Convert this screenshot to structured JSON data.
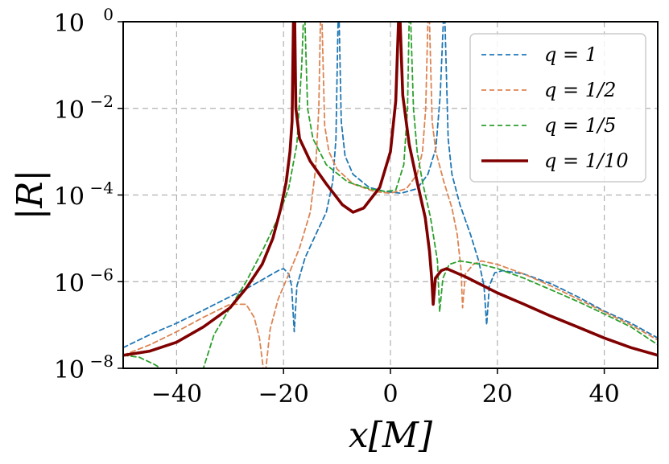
{
  "chart_data": {
    "type": "line",
    "title": "",
    "xlabel": "x[M]",
    "ylabel": "|R|",
    "xlim": [
      -50,
      50
    ],
    "ylim_log10": [
      -8,
      0
    ],
    "yscale": "log",
    "grid": true,
    "legend_position": "top-right",
    "x_ticks": [
      -40,
      -20,
      0,
      20,
      40
    ],
    "x_tick_labels": [
      "−40",
      "−20",
      "0",
      "20",
      "40"
    ],
    "y_ticks_log10": [
      -8,
      -6,
      -4,
      -2,
      0
    ],
    "y_tick_labels": [
      "10−8",
      "10−6",
      "10−4",
      "10−2",
      "100"
    ],
    "series": [
      {
        "name": "q = 1",
        "color": "#1f77b4",
        "style": "dashed",
        "points": [
          [
            -50,
            3e-08
          ],
          [
            -45,
            6e-08
          ],
          [
            -40,
            1.1e-07
          ],
          [
            -35,
            2.2e-07
          ],
          [
            -30,
            4.5e-07
          ],
          [
            -26,
            8e-07
          ],
          [
            -23,
            1.3e-06
          ],
          [
            -21,
            1.8e-06
          ],
          [
            -20,
            2e-06
          ],
          [
            -19,
            1.5e-06
          ],
          [
            -18.5,
            8e-07
          ],
          [
            -18,
            7e-08
          ],
          [
            -17.5,
            8e-07
          ],
          [
            -16,
            3.5e-06
          ],
          [
            -14,
            1.2e-05
          ],
          [
            -12,
            4e-05
          ],
          [
            -10.8,
            0.0002
          ],
          [
            -10.2,
            0.002
          ],
          [
            -9.8,
            1
          ],
          [
            -9.6,
            1
          ],
          [
            -9.2,
            0.005
          ],
          [
            -8.5,
            0.0008
          ],
          [
            -7,
            0.0003
          ],
          [
            -4,
            0.00015
          ],
          [
            -1,
            0.00012
          ],
          [
            2,
            0.00011
          ],
          [
            5,
            0.00014
          ],
          [
            7,
            0.0003
          ],
          [
            8.5,
            0.0012
          ],
          [
            9.3,
            0.02
          ],
          [
            9.9,
            1
          ],
          [
            10.2,
            1
          ],
          [
            10.8,
            0.002
          ],
          [
            11.5,
            0.0003
          ],
          [
            13,
            6e-05
          ],
          [
            15,
            1.2e-05
          ],
          [
            16.5,
            3e-06
          ],
          [
            17.5,
            8e-07
          ],
          [
            18,
            1e-07
          ],
          [
            18.5,
            8e-07
          ],
          [
            19.5,
            1.6e-06
          ],
          [
            21,
            1.8e-06
          ],
          [
            25,
            1.5e-06
          ],
          [
            30,
            9e-07
          ],
          [
            35,
            4.5e-07
          ],
          [
            40,
            2.1e-07
          ],
          [
            45,
            1.1e-07
          ],
          [
            50,
            5e-08
          ]
        ]
      },
      {
        "name": "q = 1/2",
        "color": "#dd8452",
        "style": "dashed",
        "points": [
          [
            -50,
            2e-08
          ],
          [
            -45,
            3.5e-08
          ],
          [
            -40,
            7e-08
          ],
          [
            -35,
            1.5e-07
          ],
          [
            -30,
            3e-07
          ],
          [
            -27,
            3e-07
          ],
          [
            -25.5,
            1.5e-07
          ],
          [
            -24.5,
            5e-08
          ],
          [
            -23.8,
            1e-08
          ],
          [
            -23.3,
            1e-08
          ],
          [
            -22.5,
            8e-08
          ],
          [
            -21,
            4e-07
          ],
          [
            -19,
            1.5e-06
          ],
          [
            -17,
            6e-06
          ],
          [
            -15,
            4e-05
          ],
          [
            -14,
            0.0004
          ],
          [
            -13.4,
            0.01
          ],
          [
            -13.1,
            1
          ],
          [
            -12.8,
            1
          ],
          [
            -12.3,
            0.004
          ],
          [
            -11.5,
            0.001
          ],
          [
            -10,
            0.0004
          ],
          [
            -7,
            0.00018
          ],
          [
            -3,
            0.00012
          ],
          [
            0,
            0.00011
          ],
          [
            3,
            0.00014
          ],
          [
            5,
            0.0003
          ],
          [
            6,
            0.001
          ],
          [
            6.6,
            0.01
          ],
          [
            7,
            1
          ],
          [
            7.3,
            1
          ],
          [
            7.8,
            0.005
          ],
          [
            8.5,
            0.001
          ],
          [
            10,
            0.0002
          ],
          [
            11.5,
            5e-05
          ],
          [
            12.5,
            1.2e-05
          ],
          [
            13.2,
            2e-06
          ],
          [
            13.5,
            2.5e-07
          ],
          [
            14,
            1.5e-06
          ],
          [
            15.5,
            2.5e-06
          ],
          [
            17,
            3e-06
          ],
          [
            20,
            2.5e-06
          ],
          [
            25,
            1.5e-06
          ],
          [
            30,
            8e-07
          ],
          [
            35,
            4e-07
          ],
          [
            40,
            2e-07
          ],
          [
            45,
            1e-07
          ],
          [
            50,
            4.5e-08
          ]
        ]
      },
      {
        "name": "q = 1/5",
        "color": "#2ca02c",
        "style": "dashed",
        "points": [
          [
            -50,
            2e-08
          ],
          [
            -47,
            1.8e-08
          ],
          [
            -44,
            1.2e-08
          ],
          [
            -43,
            1e-08
          ],
          [
            -35,
            1e-08
          ],
          [
            -33,
            6e-08
          ],
          [
            -30,
            2.5e-07
          ],
          [
            -27,
            1e-06
          ],
          [
            -24,
            5e-06
          ],
          [
            -21,
            3e-05
          ],
          [
            -19,
            0.00015
          ],
          [
            -17.5,
            0.0015
          ],
          [
            -16.6,
            0.1
          ],
          [
            -16.3,
            1
          ],
          [
            -16,
            1
          ],
          [
            -15.5,
            0.01
          ],
          [
            -14.5,
            0.002
          ],
          [
            -12,
            0.0005
          ],
          [
            -8,
            0.0002
          ],
          [
            -4,
            0.00014
          ],
          [
            -1,
            0.00012
          ],
          [
            1,
            0.00013
          ],
          [
            2.5,
            0.0005
          ],
          [
            3.2,
            0.01
          ],
          [
            3.5,
            1
          ],
          [
            3.8,
            1
          ],
          [
            4.3,
            0.01
          ],
          [
            5,
            0.001
          ],
          [
            6,
            0.0002
          ],
          [
            7.5,
            3e-05
          ],
          [
            8.8,
            3e-06
          ],
          [
            9.2,
            2e-07
          ],
          [
            9.8,
            1.2e-06
          ],
          [
            11,
            2.5e-06
          ],
          [
            13,
            3e-06
          ],
          [
            17,
            2.5e-06
          ],
          [
            20,
            2e-06
          ],
          [
            25,
            1.2e-06
          ],
          [
            30,
            6.5e-07
          ],
          [
            35,
            3.5e-07
          ],
          [
            40,
            1.8e-07
          ],
          [
            45,
            9e-08
          ],
          [
            50,
            3.5e-08
          ]
        ]
      },
      {
        "name": "q = 1/10",
        "color": "#800000",
        "style": "solid",
        "points": [
          [
            -50,
            2e-08
          ],
          [
            -45,
            2.5e-08
          ],
          [
            -40,
            4e-08
          ],
          [
            -35,
            9e-08
          ],
          [
            -30,
            2.5e-07
          ],
          [
            -27,
            7e-07
          ],
          [
            -24,
            2.5e-06
          ],
          [
            -22,
            1e-05
          ],
          [
            -20.5,
            5e-05
          ],
          [
            -19.5,
            0.0002
          ],
          [
            -18.8,
            0.001
          ],
          [
            -18.4,
            0.005
          ],
          [
            -18.15,
            1
          ],
          [
            -17.9,
            1
          ],
          [
            -17.7,
            0.01
          ],
          [
            -17,
            0.002
          ],
          [
            -15,
            0.0006
          ],
          [
            -12,
            0.00018
          ],
          [
            -9,
            6e-05
          ],
          [
            -7,
            4e-05
          ],
          [
            -5,
            5e-05
          ],
          [
            -2,
            0.00015
          ],
          [
            0,
            0.001
          ],
          [
            1,
            0.015
          ],
          [
            1.5,
            1
          ],
          [
            1.8,
            1
          ],
          [
            2.3,
            0.02
          ],
          [
            3.5,
            0.0015
          ],
          [
            5,
            0.0002
          ],
          [
            6.5,
            3e-05
          ],
          [
            7.3,
            5e-06
          ],
          [
            7.7,
            1.3e-06
          ],
          [
            8,
            3e-07
          ],
          [
            8.4,
            1.2e-06
          ],
          [
            9.5,
            1.8e-06
          ],
          [
            10.5,
            2e-06
          ],
          [
            14,
            1.3e-06
          ],
          [
            20,
            5.5e-07
          ],
          [
            25,
            3e-07
          ],
          [
            30,
            1.6e-07
          ],
          [
            35,
            9e-08
          ],
          [
            40,
            5e-08
          ],
          [
            45,
            3e-08
          ],
          [
            50,
            2e-08
          ]
        ]
      }
    ]
  }
}
